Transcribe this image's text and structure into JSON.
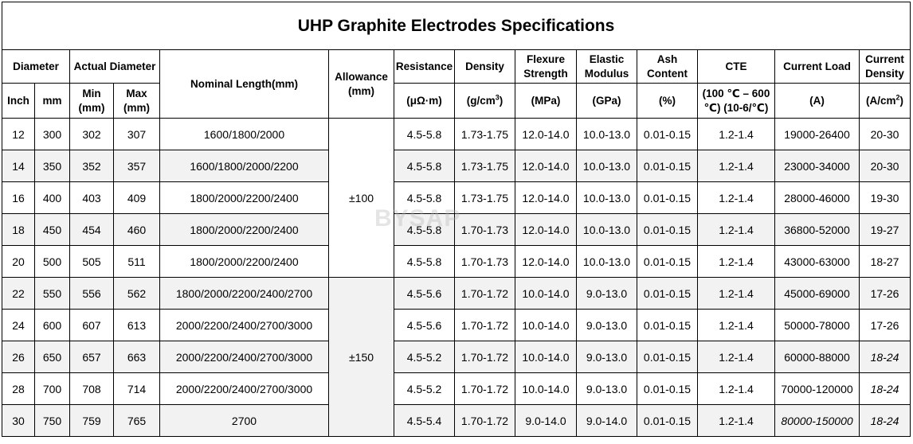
{
  "title": "UHP Graphite Electrodes Specifications",
  "watermark": "BYSAP",
  "headers": {
    "diameter": "Diameter",
    "actual_diameter": "Actual Diameter",
    "nominal_length": "Nominal Length(mm)",
    "allowance": "Allowance (mm)",
    "resistance": "Resistance",
    "density": "Density",
    "flexure": "Flexure Strength",
    "elastic": "Elastic Modulus",
    "ash": "Ash Content",
    "cte": "CTE",
    "current_load": "Current Load",
    "current_density": "Current Density",
    "inch": "Inch",
    "mm": "mm",
    "min": "Min (mm)",
    "max": "Max (mm)",
    "resistance_unit": "(μΩ·m)",
    "density_unit": "(g/cm",
    "density_sup": "3",
    "density_close": ")",
    "flexure_unit": "(MPa)",
    "elastic_unit": "(GPa)",
    "ash_unit": "(%)",
    "cte_unit": "(100 ℃ – 600 ℃) (10-6/℃)",
    "current_load_unit": "(A)",
    "current_density_unit": "(A/cm",
    "current_density_sup": "2",
    "current_density_close": ")"
  },
  "allowance_groups": [
    "±100",
    "±150"
  ],
  "rows": [
    {
      "inch": "12",
      "mm": "300",
      "min": "302",
      "max": "307",
      "length": "1600/1800/2000",
      "resistance": "4.5-5.8",
      "density": "1.73-1.75",
      "flexure": "12.0-14.0",
      "elastic": "10.0-13.0",
      "ash": "0.01-0.15",
      "cte": "1.2-1.4",
      "load": "19000-26400",
      "cdensity": "20-30"
    },
    {
      "inch": "14",
      "mm": "350",
      "min": "352",
      "max": "357",
      "length": "1600/1800/2000/2200",
      "resistance": "4.5-5.8",
      "density": "1.73-1.75",
      "flexure": "12.0-14.0",
      "elastic": "10.0-13.0",
      "ash": "0.01-0.15",
      "cte": "1.2-1.4",
      "load": "23000-34000",
      "cdensity": "20-30"
    },
    {
      "inch": "16",
      "mm": "400",
      "min": "403",
      "max": "409",
      "length": "1800/2000/2200/2400",
      "resistance": "4.5-5.8",
      "density": "1.73-1.75",
      "flexure": "12.0-14.0",
      "elastic": "10.0-13.0",
      "ash": "0.01-0.15",
      "cte": "1.2-1.4",
      "load": "28000-46000",
      "cdensity": "19-30"
    },
    {
      "inch": "18",
      "mm": "450",
      "min": "454",
      "max": "460",
      "length": "1800/2000/2200/2400",
      "resistance": "4.5-5.8",
      "density": "1.70-1.73",
      "flexure": "12.0-14.0",
      "elastic": "10.0-13.0",
      "ash": "0.01-0.15",
      "cte": "1.2-1.4",
      "load": "36800-52000",
      "cdensity": "19-27"
    },
    {
      "inch": "20",
      "mm": "500",
      "min": "505",
      "max": "511",
      "length": "1800/2000/2200/2400",
      "resistance": "4.5-5.8",
      "density": "1.70-1.73",
      "flexure": "12.0-14.0",
      "elastic": "10.0-13.0",
      "ash": "0.01-0.15",
      "cte": "1.2-1.4",
      "load": "43000-63000",
      "cdensity": "18-27"
    },
    {
      "inch": "22",
      "mm": "550",
      "min": "556",
      "max": "562",
      "length": "1800/2000/2200/2400/2700",
      "resistance": "4.5-5.6",
      "density": "1.70-1.72",
      "flexure": "10.0-14.0",
      "elastic": "9.0-13.0",
      "ash": "0.01-0.15",
      "cte": "1.2-1.4",
      "load": "45000-69000",
      "cdensity": "17-26"
    },
    {
      "inch": "24",
      "mm": "600",
      "min": "607",
      "max": "613",
      "length": "2000/2200/2400/2700/3000",
      "resistance": "4.5-5.6",
      "density": "1.70-1.72",
      "flexure": "10.0-14.0",
      "elastic": "9.0-13.0",
      "ash": "0.01-0.15",
      "cte": "1.2-1.4",
      "load": "50000-78000",
      "cdensity": "17-26"
    },
    {
      "inch": "26",
      "mm": "650",
      "min": "657",
      "max": "663",
      "length": "2000/2200/2400/2700/3000",
      "resistance": "4.5-5.2",
      "density": "1.70-1.72",
      "flexure": "10.0-14.0",
      "elastic": "9.0-13.0",
      "ash": "0.01-0.15",
      "cte": "1.2-1.4",
      "load": "60000-88000",
      "cdensity": "18-24"
    },
    {
      "inch": "28",
      "mm": "700",
      "min": "708",
      "max": "714",
      "length": "2000/2200/2400/2700/3000",
      "resistance": "4.5-5.2",
      "density": "1.70-1.72",
      "flexure": "10.0-14.0",
      "elastic": "9.0-13.0",
      "ash": "0.01-0.15",
      "cte": "1.2-1.4",
      "load": "70000-120000",
      "cdensity": "18-24"
    },
    {
      "inch": "30",
      "mm": "750",
      "min": "759",
      "max": "765",
      "length": "2700",
      "resistance": "4.5-5.4",
      "density": "1.70-1.72",
      "flexure": "9.0-14.0",
      "elastic": "9.0-14.0",
      "ash": "0.01-0.15",
      "cte": "1.2-1.4",
      "load": "80000-150000",
      "cdensity": "18-24"
    }
  ]
}
